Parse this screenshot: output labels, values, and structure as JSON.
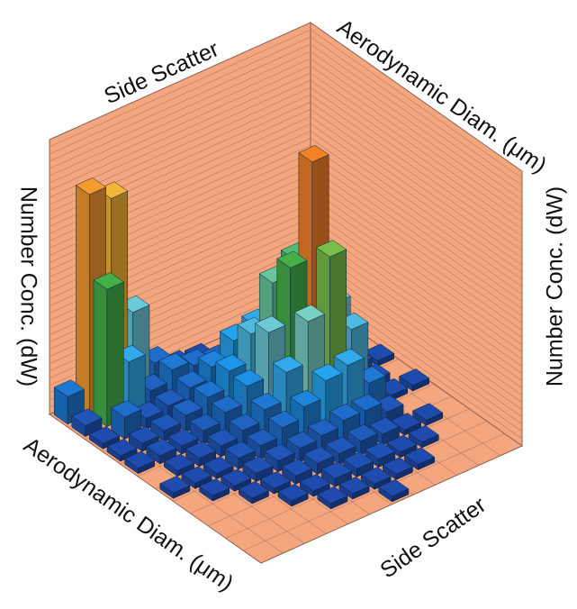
{
  "chart_data": {
    "type": "bar3d",
    "x_label": "Aerodynamic Diam. (μm)",
    "y_label": "Side Scatter",
    "z_label": "Number Conc. (dW)",
    "zlim": [
      0,
      100
    ],
    "wall_color": "#f4a67f",
    "colormap": [
      "#1f3fa6",
      "#1e9ff0",
      "#7fd3d0",
      "#45b04a",
      "#f4e04a",
      "#f58a2a",
      "#e5342a"
    ],
    "values": [
      [
        null,
        null,
        null,
        null,
        2,
        null,
        2,
        null,
        null,
        null,
        null,
        null
      ],
      [
        null,
        null,
        null,
        3,
        4,
        3,
        2,
        null,
        2,
        null,
        null,
        null
      ],
      [
        null,
        null,
        8,
        20,
        30,
        25,
        10,
        4,
        2,
        2,
        null,
        null
      ],
      [
        null,
        3,
        15,
        45,
        85,
        55,
        20,
        8,
        4,
        2,
        2,
        null
      ],
      [
        null,
        4,
        20,
        40,
        50,
        35,
        18,
        8,
        5,
        3,
        2,
        null
      ],
      [
        2,
        6,
        18,
        25,
        30,
        20,
        12,
        6,
        4,
        3,
        2,
        2
      ],
      [
        3,
        8,
        12,
        15,
        14,
        10,
        8,
        5,
        4,
        3,
        2,
        null
      ],
      [
        8,
        10,
        8,
        9,
        8,
        6,
        5,
        4,
        3,
        2,
        2,
        null
      ],
      [
        30,
        6,
        5,
        6,
        5,
        4,
        4,
        3,
        2,
        2,
        null,
        null
      ],
      [
        75,
        20,
        4,
        4,
        3,
        3,
        2,
        2,
        2,
        null,
        null,
        null
      ],
      [
        80,
        50,
        8,
        3,
        3,
        2,
        2,
        2,
        null,
        null,
        null,
        null
      ],
      [
        10,
        4,
        2,
        2,
        2,
        null,
        2,
        null,
        null,
        null,
        null,
        null
      ]
    ]
  }
}
